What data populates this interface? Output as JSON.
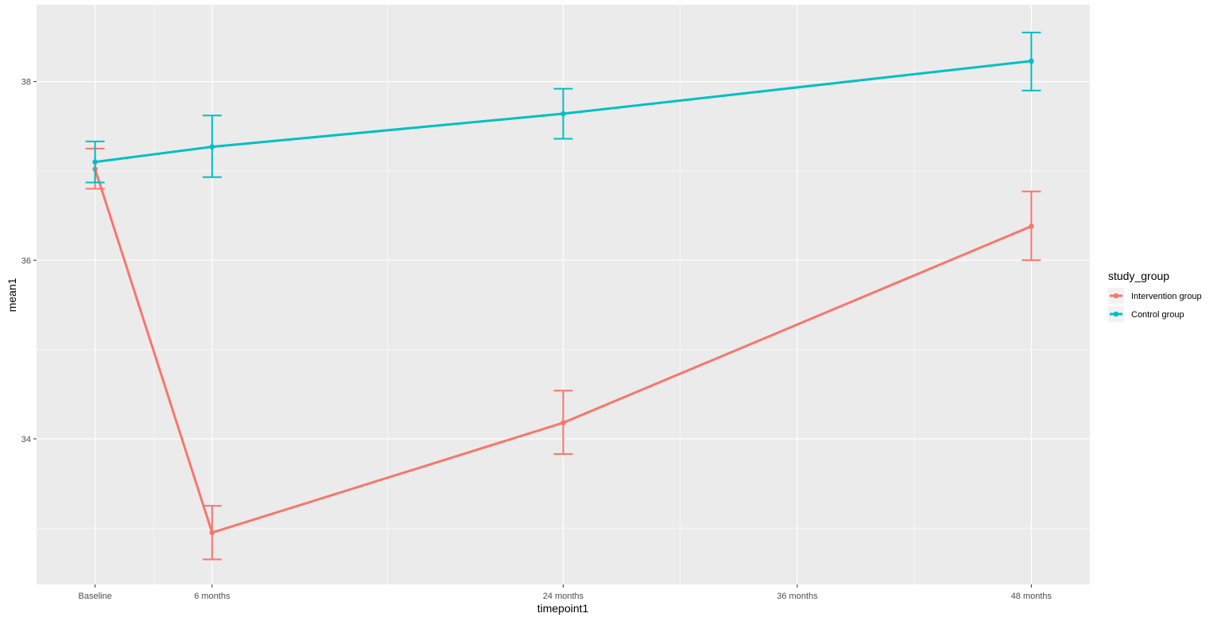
{
  "chart_data": {
    "type": "line",
    "xlabel": "timepoint1",
    "ylabel": "mean1",
    "x_ticks": [
      {
        "label": "Baseline",
        "value": 0
      },
      {
        "label": "6 months",
        "value": 6
      },
      {
        "label": "24 months",
        "value": 24
      },
      {
        "label": "36 months",
        "value": 36
      },
      {
        "label": "48 months",
        "value": 48
      }
    ],
    "y_ticks": [
      34,
      36,
      38
    ],
    "xlim": [
      -3,
      51
    ],
    "ylim": [
      32.37,
      38.86
    ],
    "grid": true,
    "legend_placement": "right",
    "legend_title": "study_group",
    "series": [
      {
        "name": "Intervention group",
        "color": "#F8766D",
        "x": [
          0,
          6,
          24,
          48
        ],
        "y": [
          37.02,
          32.95,
          34.18,
          36.38
        ],
        "lower": [
          36.8,
          32.65,
          33.83,
          36.0
        ],
        "upper": [
          37.25,
          33.25,
          34.54,
          36.77
        ]
      },
      {
        "name": "Control group",
        "color": "#00BFC4",
        "x": [
          0,
          6,
          24,
          48
        ],
        "y": [
          37.1,
          37.27,
          37.64,
          38.23
        ],
        "lower": [
          36.87,
          36.93,
          37.36,
          37.9
        ],
        "upper": [
          37.33,
          37.62,
          37.92,
          38.55
        ]
      }
    ]
  }
}
